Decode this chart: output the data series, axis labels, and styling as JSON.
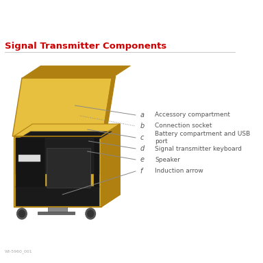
{
  "title": "Signal Transmitter Components",
  "title_color": "#cc0000",
  "title_fontsize": 9.5,
  "background_color": "#ffffff",
  "labels": {
    "a": "Accessory compartment",
    "b": "Connection socket",
    "c": "Battery compartment and USB\nport",
    "d": "Signal transmitter keyboard",
    "e": "Speaker",
    "f": "Induction arrow"
  },
  "label_keys": [
    "a",
    "b",
    "c",
    "d",
    "e",
    "f"
  ],
  "label_color": "#555555",
  "label_fontsize": 6.5,
  "key_fontsize": 7,
  "case_yellow": "#d4a820",
  "case_yellow_dark": "#b08010",
  "case_yellow_light": "#e8c040",
  "case_interior_dark": "#1a1a1a",
  "case_interior_mid": "#252525",
  "line_color": "#888888",
  "watermark_text": "WI-5960_001",
  "watermark_color": "#aaaaaa",
  "watermark_fontsize": 4.5,
  "divider_color": "#cccccc",
  "title_underline_color": "#cccccc"
}
